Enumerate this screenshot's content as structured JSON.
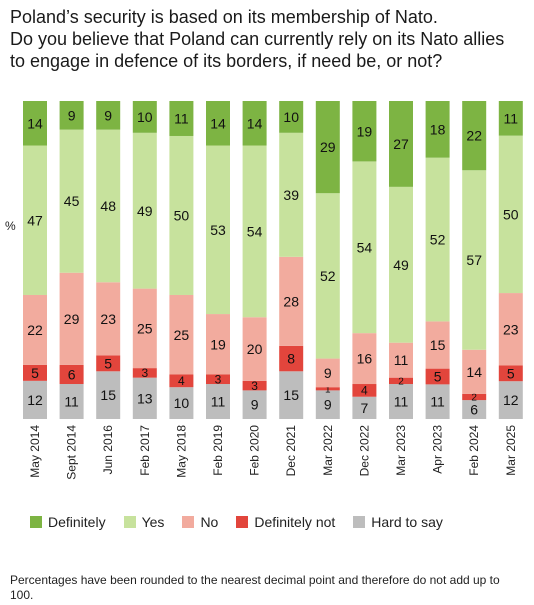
{
  "title_lines": [
    "Poland’s security is based on its membership of Nato.",
    "Do you believe that Poland can currently rely on its Nato allies",
    "to engage in defence of its borders, if need be, or not?"
  ],
  "y_unit": "%",
  "footnote": "Percentages have been rounded to the nearest decimal point and therefore do not add up to 100.",
  "chart_data": {
    "type": "bar",
    "stacked": true,
    "categories": [
      "May 2014",
      "Sept 2014",
      "Jun 2016",
      "Feb 2017",
      "May 2018",
      "Feb 2019",
      "Feb 2020",
      "Dec 2021",
      "Mar 2022",
      "Dec 2022",
      "Mar 2023",
      "Apr 2023",
      "Feb 2024",
      "Mar 2025"
    ],
    "series": [
      {
        "name": "Hard to say",
        "color": "#bdbdbd",
        "values": [
          12,
          11,
          15,
          13,
          10,
          11,
          9,
          15,
          9,
          7,
          11,
          11,
          6,
          12
        ]
      },
      {
        "name": "Definitely not",
        "color": "#e2453c",
        "values": [
          5,
          6,
          5,
          3,
          4,
          3,
          3,
          8,
          1,
          4,
          2,
          5,
          2,
          5
        ]
      },
      {
        "name": "No",
        "color": "#f2ab9e",
        "values": [
          22,
          29,
          23,
          25,
          25,
          19,
          20,
          28,
          9,
          16,
          11,
          15,
          14,
          23
        ]
      },
      {
        "name": "Yes",
        "color": "#c7e29d",
        "values": [
          47,
          45,
          48,
          49,
          50,
          53,
          54,
          39,
          52,
          54,
          49,
          52,
          57,
          50
        ]
      },
      {
        "name": "Definitely",
        "color": "#7db443",
        "values": [
          14,
          9,
          9,
          10,
          11,
          14,
          14,
          10,
          29,
          19,
          27,
          18,
          22,
          11
        ]
      }
    ],
    "ylabel": "%",
    "legend_position": "bottom",
    "legend_order": [
      "Definitely",
      "Yes",
      "No",
      "Definitely not",
      "Hard to say"
    ],
    "grid": false
  }
}
